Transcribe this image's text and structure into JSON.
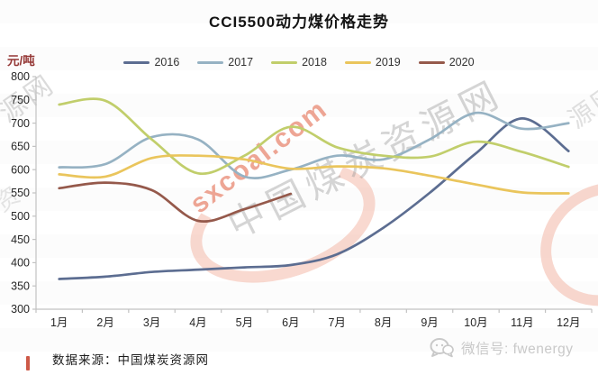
{
  "title": "CCI5500动力煤价格走势",
  "y_axis_unit": "元/吨",
  "footer": {
    "source": "数据来源：中国煤炭资源网",
    "wechat": "微信号: fwenergy"
  },
  "watermarks": {
    "sxcoal_text": "sxcoal.com",
    "cn_name_text": "中国煤炭资源网",
    "left_edge_text": "源网",
    "left_edge_text2": "资",
    "right_edge_text": "源网"
  },
  "colors": {
    "series_2016": "#5c6d91",
    "series_2017": "#96b2c3",
    "series_2018": "#c1ce6b",
    "series_2019": "#eac55c",
    "series_2020": "#95594b",
    "axis": "#c2c2c2",
    "tick_text": "#262626",
    "y_unit_text": "#943634",
    "wechat_gray": "#c9c9c9",
    "watermark_red": "#e05c3e",
    "watermark_pink": "#f2b09e",
    "watermark_gray": "#919191"
  },
  "chart_data": {
    "type": "line",
    "title": "CCI5500动力煤价格走势",
    "xlabel": "",
    "ylabel": "元/吨",
    "ylim": [
      300,
      800
    ],
    "ytick_step": 50,
    "grid": false,
    "legend_position": "top",
    "categories": [
      "1月",
      "2月",
      "3月",
      "4月",
      "5月",
      "6月",
      "7月",
      "8月",
      "9月",
      "10月",
      "11月",
      "12月"
    ],
    "series": [
      {
        "name": "2016",
        "color": "#5c6d91",
        "values": [
          365,
          370,
          380,
          385,
          390,
          395,
          418,
          475,
          550,
          635,
          710,
          640
        ]
      },
      {
        "name": "2017",
        "color": "#96b2c3",
        "values": [
          605,
          612,
          670,
          665,
          585,
          600,
          630,
          622,
          665,
          722,
          688,
          700
        ]
      },
      {
        "name": "2018",
        "color": "#c1ce6b",
        "values": [
          740,
          748,
          665,
          592,
          630,
          692,
          648,
          630,
          628,
          660,
          638,
          606
        ]
      },
      {
        "name": "2019",
        "color": "#eac55c",
        "values": [
          590,
          585,
          625,
          630,
          622,
          602,
          607,
          603,
          587,
          568,
          551,
          549
        ]
      },
      {
        "name": "2020",
        "color": "#95594b",
        "values": [
          560,
          572,
          556,
          490,
          515,
          548
        ]
      }
    ]
  }
}
